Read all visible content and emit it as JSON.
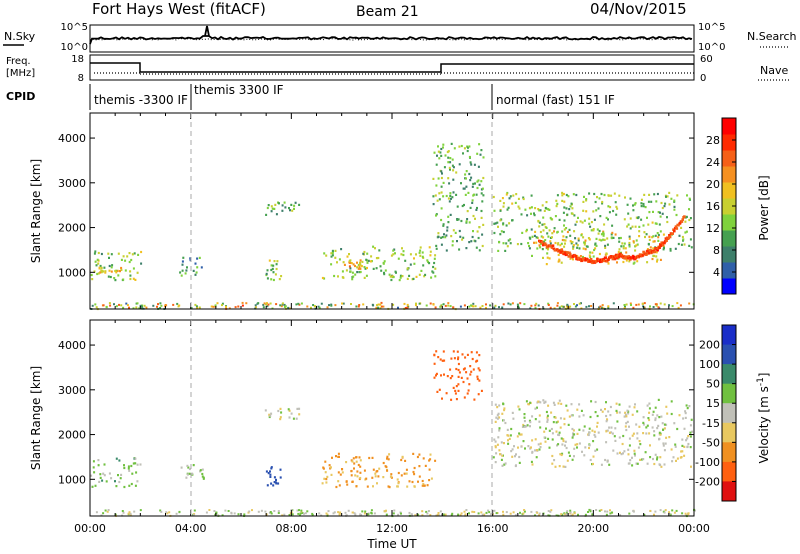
{
  "header": {
    "radar": "Fort Hays West (fitACF)",
    "beam": "Beam 21",
    "date": "04/Nov/2015"
  },
  "noise_panel": {
    "left_label": "N.Sky",
    "right_label": "N.Search",
    "left_ticks": [
      "10^5",
      "10^0"
    ],
    "right_ticks": [
      "10^5",
      "10^0"
    ]
  },
  "freq_panel": {
    "left_label_1": "Freq.",
    "left_label_2": "[MHz]",
    "right_label": "Nave",
    "left_ticks": [
      "18",
      "8"
    ],
    "right_ticks": [
      "60",
      "0"
    ]
  },
  "cpid": {
    "label": "CPID",
    "segments": [
      {
        "start": 0,
        "end": 4,
        "label": "themis -3300 IF"
      },
      {
        "start": 4,
        "end": 16,
        "label": "themis 3300 IF"
      },
      {
        "start": 16,
        "end": 24,
        "label": "normal (fast) 151 IF"
      }
    ]
  },
  "chart_data": [
    {
      "type": "heatmap",
      "quantity": "Power",
      "xlabel": "",
      "ylabel": "Slant Range [km]",
      "xlim": [
        0,
        24
      ],
      "ylim": [
        180,
        4560
      ],
      "yticks": [
        1000,
        2000,
        3000,
        4000
      ],
      "colorbar_label": "Power [dB]",
      "colorbar_ticks": [
        "4",
        "8",
        "12",
        "16",
        "20",
        "24",
        "28"
      ],
      "colorbar_colors": [
        "#0000ff",
        "#2f5fa8",
        "#3d7f6a",
        "#45a050",
        "#7fd23c",
        "#c8d030",
        "#f0c020",
        "#f59020",
        "#f56018",
        "#ff2a00",
        "#ff0000"
      ],
      "regions": [
        {
          "t": [
            0.0,
            2.0
          ],
          "r": [
            850,
            1500
          ],
          "level": 12
        },
        {
          "t": [
            0.2,
            1.2
          ],
          "r": [
            1000,
            1150
          ],
          "level": 18
        },
        {
          "t": [
            3.5,
            4.5
          ],
          "r": [
            950,
            1350
          ],
          "level": 8
        },
        {
          "t": [
            6.9,
            7.6
          ],
          "r": [
            850,
            1300
          ],
          "level": 12
        },
        {
          "t": [
            6.9,
            8.3
          ],
          "r": [
            2300,
            2600
          ],
          "level": 10
        },
        {
          "t": [
            9.2,
            13.7
          ],
          "r": [
            850,
            1600
          ],
          "level": 12
        },
        {
          "t": [
            10.0,
            11.0
          ],
          "r": [
            1100,
            1300
          ],
          "level": 18
        },
        {
          "t": [
            13.6,
            15.6
          ],
          "r": [
            1500,
            3900
          ],
          "level": 10
        },
        {
          "t": [
            16.0,
            23.9
          ],
          "r": [
            1500,
            2800
          ],
          "level": 12
        },
        {
          "t": [
            17.5,
            22.7
          ],
          "r": [
            1200,
            1950
          ],
          "level": 16
        }
      ],
      "ridge": {
        "t": [
          17.8,
          18.5,
          19.0,
          19.5,
          20.0,
          20.5,
          21.0,
          21.5,
          22.0,
          22.5,
          23.0,
          23.6
        ],
        "r": [
          1700,
          1550,
          1420,
          1320,
          1280,
          1320,
          1400,
          1350,
          1450,
          1550,
          1850,
          2300
        ],
        "level": 26
      }
    },
    {
      "type": "heatmap",
      "quantity": "Velocity",
      "xlabel": "Time UT",
      "ylabel": "Slant Range [km]",
      "xlim": [
        0,
        24
      ],
      "ylim": [
        180,
        4560
      ],
      "xticks": [
        "00:00",
        "04:00",
        "08:00",
        "12:00",
        "16:00",
        "20:00",
        "00:00"
      ],
      "yticks": [
        1000,
        2000,
        3000,
        4000
      ],
      "colorbar_label": "Velocity [m s^-1]",
      "colorbar_ticks": [
        "200",
        "100",
        "50",
        "15",
        "-15",
        "-50",
        "-100",
        "-200"
      ],
      "colorbar_colors": [
        "#1a2ec8",
        "#2a50b0",
        "#3a8a6a",
        "#70c040",
        "#c0c0b8",
        "#e8c860",
        "#f09020",
        "#ff6010",
        "#e01010"
      ],
      "regions": [
        {
          "t": [
            0.0,
            2.0
          ],
          "r": [
            850,
            1500
          ],
          "velocity": 25
        },
        {
          "t": [
            3.5,
            4.5
          ],
          "r": [
            950,
            1350
          ],
          "velocity": 20
        },
        {
          "t": [
            6.9,
            7.6
          ],
          "r": [
            850,
            1300
          ],
          "velocity": 150
        },
        {
          "t": [
            6.9,
            8.3
          ],
          "r": [
            2300,
            2600
          ],
          "velocity": 0
        },
        {
          "t": [
            9.2,
            13.7
          ],
          "r": [
            850,
            1600
          ],
          "velocity": -60
        },
        {
          "t": [
            13.6,
            15.6
          ],
          "r": [
            2800,
            3900
          ],
          "velocity": -150
        },
        {
          "t": [
            16.0,
            23.9
          ],
          "r": [
            1300,
            2800
          ],
          "velocity": 0
        }
      ]
    }
  ]
}
